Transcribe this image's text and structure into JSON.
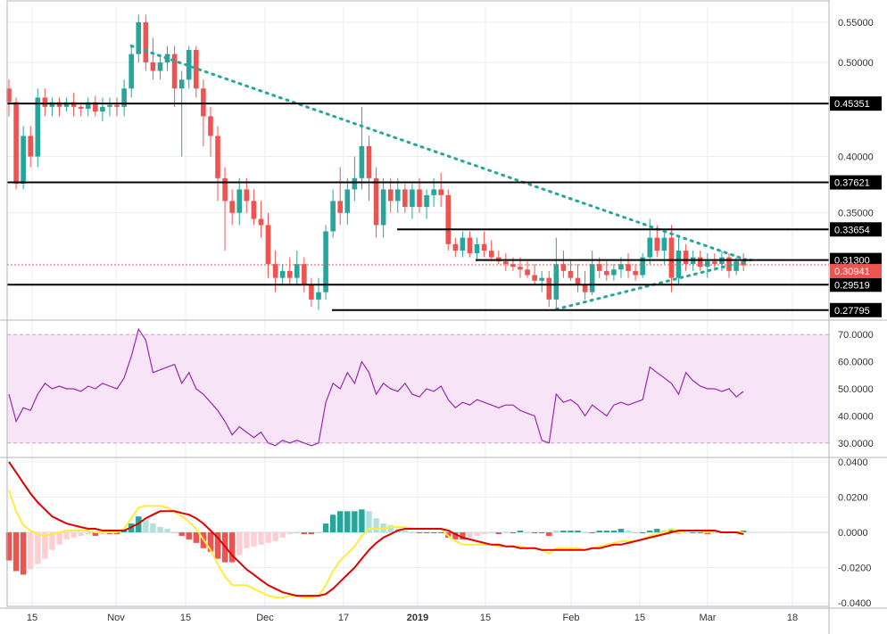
{
  "chart_data": {
    "type": "candlestick",
    "x_labels": [
      "15",
      "Nov",
      "15",
      "Dec",
      "17",
      "2019",
      "15",
      "Feb",
      "15",
      "Mar",
      "18"
    ],
    "price_axis": {
      "ticks": [
        "0.55000",
        "0.50000",
        "0.40000",
        "0.35000"
      ],
      "ylim": [
        0.272,
        0.57
      ],
      "scale": "log"
    },
    "horizontal_levels": [
      {
        "value": 0.45351,
        "label": "0.45351"
      },
      {
        "value": 0.37621,
        "label": "0.37621"
      },
      {
        "value": 0.33654,
        "label": "0.33654"
      },
      {
        "value": 0.313,
        "label": "0.31300"
      },
      {
        "value": 0.29519,
        "label": "0.29519"
      },
      {
        "value": 0.27795,
        "label": "0.27795"
      }
    ],
    "current_price": {
      "value": 0.30941,
      "label": "0.30941",
      "color": "#ef5350"
    },
    "colors": {
      "up": "#26a69a",
      "down": "#ef5350",
      "trendline": "#26a69a",
      "rsi": "#9c27b0",
      "rsi_band": "#f7e4f7",
      "macd": "#ffeb3b",
      "signal": "#e00000"
    },
    "trendlines": [
      {
        "from": [
          17,
          0.52
        ],
        "to": [
          103,
          0.312
        ],
        "style": "dotted"
      },
      {
        "from": [
          76,
          0.2785
        ],
        "to": [
          103,
          0.313
        ],
        "style": "dotted"
      }
    ],
    "candles": [
      [
        0.47,
        0.48,
        0.44,
        0.455
      ],
      [
        0.455,
        0.46,
        0.37,
        0.375
      ],
      [
        0.375,
        0.43,
        0.37,
        0.42
      ],
      [
        0.42,
        0.43,
        0.39,
        0.4
      ],
      [
        0.4,
        0.47,
        0.39,
        0.46
      ],
      [
        0.46,
        0.47,
        0.44,
        0.45
      ],
      [
        0.45,
        0.46,
        0.44,
        0.455
      ],
      [
        0.455,
        0.46,
        0.44,
        0.45
      ],
      [
        0.45,
        0.46,
        0.445,
        0.455
      ],
      [
        0.455,
        0.465,
        0.44,
        0.45
      ],
      [
        0.45,
        0.455,
        0.44,
        0.448
      ],
      [
        0.448,
        0.46,
        0.44,
        0.455
      ],
      [
        0.455,
        0.462,
        0.44,
        0.445
      ],
      [
        0.445,
        0.46,
        0.435,
        0.45
      ],
      [
        0.45,
        0.46,
        0.44,
        0.452
      ],
      [
        0.452,
        0.46,
        0.44,
        0.45
      ],
      [
        0.45,
        0.48,
        0.44,
        0.47
      ],
      [
        0.47,
        0.52,
        0.46,
        0.51
      ],
      [
        0.51,
        0.56,
        0.5,
        0.55
      ],
      [
        0.55,
        0.56,
        0.49,
        0.5
      ],
      [
        0.5,
        0.53,
        0.48,
        0.49
      ],
      [
        0.49,
        0.51,
        0.48,
        0.5
      ],
      [
        0.5,
        0.52,
        0.49,
        0.51
      ],
      [
        0.51,
        0.52,
        0.45,
        0.47
      ],
      [
        0.47,
        0.49,
        0.4,
        0.48
      ],
      [
        0.48,
        0.52,
        0.47,
        0.515
      ],
      [
        0.515,
        0.52,
        0.46,
        0.47
      ],
      [
        0.47,
        0.48,
        0.41,
        0.44
      ],
      [
        0.44,
        0.45,
        0.4,
        0.42
      ],
      [
        0.42,
        0.43,
        0.36,
        0.38
      ],
      [
        0.38,
        0.39,
        0.32,
        0.36
      ],
      [
        0.36,
        0.37,
        0.34,
        0.35
      ],
      [
        0.35,
        0.38,
        0.34,
        0.37
      ],
      [
        0.37,
        0.38,
        0.35,
        0.36
      ],
      [
        0.36,
        0.37,
        0.34,
        0.345
      ],
      [
        0.345,
        0.36,
        0.33,
        0.34
      ],
      [
        0.34,
        0.35,
        0.3,
        0.31
      ],
      [
        0.31,
        0.32,
        0.29,
        0.3
      ],
      [
        0.3,
        0.31,
        0.295,
        0.305
      ],
      [
        0.305,
        0.315,
        0.295,
        0.3
      ],
      [
        0.3,
        0.32,
        0.295,
        0.31
      ],
      [
        0.31,
        0.315,
        0.29,
        0.295
      ],
      [
        0.295,
        0.3,
        0.28,
        0.285
      ],
      [
        0.285,
        0.3,
        0.278,
        0.29
      ],
      [
        0.29,
        0.34,
        0.285,
        0.335
      ],
      [
        0.335,
        0.37,
        0.33,
        0.36
      ],
      [
        0.36,
        0.39,
        0.34,
        0.35
      ],
      [
        0.35,
        0.38,
        0.34,
        0.37
      ],
      [
        0.37,
        0.4,
        0.36,
        0.38
      ],
      [
        0.38,
        0.45,
        0.37,
        0.41
      ],
      [
        0.41,
        0.42,
        0.36,
        0.38
      ],
      [
        0.38,
        0.39,
        0.33,
        0.34
      ],
      [
        0.34,
        0.38,
        0.33,
        0.37
      ],
      [
        0.37,
        0.38,
        0.35,
        0.36
      ],
      [
        0.36,
        0.38,
        0.35,
        0.37
      ],
      [
        0.37,
        0.375,
        0.35,
        0.355
      ],
      [
        0.355,
        0.375,
        0.345,
        0.37
      ],
      [
        0.37,
        0.38,
        0.35,
        0.355
      ],
      [
        0.355,
        0.37,
        0.345,
        0.365
      ],
      [
        0.365,
        0.38,
        0.355,
        0.37
      ],
      [
        0.37,
        0.385,
        0.355,
        0.365
      ],
      [
        0.365,
        0.37,
        0.32,
        0.325
      ],
      [
        0.325,
        0.33,
        0.315,
        0.32
      ],
      [
        0.32,
        0.335,
        0.315,
        0.33
      ],
      [
        0.33,
        0.335,
        0.315,
        0.318
      ],
      [
        0.318,
        0.33,
        0.312,
        0.325
      ],
      [
        0.325,
        0.335,
        0.315,
        0.32
      ],
      [
        0.32,
        0.328,
        0.312,
        0.315
      ],
      [
        0.315,
        0.32,
        0.31,
        0.312
      ],
      [
        0.312,
        0.318,
        0.305,
        0.31
      ],
      [
        0.31,
        0.315,
        0.305,
        0.308
      ],
      [
        0.308,
        0.315,
        0.3,
        0.306
      ],
      [
        0.306,
        0.312,
        0.3,
        0.302
      ],
      [
        0.302,
        0.31,
        0.295,
        0.298
      ],
      [
        0.298,
        0.305,
        0.29,
        0.3
      ],
      [
        0.3,
        0.305,
        0.28,
        0.285
      ],
      [
        0.285,
        0.33,
        0.278,
        0.31
      ],
      [
        0.31,
        0.32,
        0.3,
        0.305
      ],
      [
        0.305,
        0.312,
        0.298,
        0.3
      ],
      [
        0.3,
        0.31,
        0.29,
        0.295
      ],
      [
        0.295,
        0.305,
        0.285,
        0.29
      ],
      [
        0.29,
        0.32,
        0.288,
        0.31
      ],
      [
        0.31,
        0.315,
        0.3,
        0.305
      ],
      [
        0.305,
        0.312,
        0.298,
        0.302
      ],
      [
        0.302,
        0.31,
        0.298,
        0.306
      ],
      [
        0.306,
        0.315,
        0.3,
        0.31
      ],
      [
        0.31,
        0.318,
        0.3,
        0.305
      ],
      [
        0.305,
        0.31,
        0.298,
        0.302
      ],
      [
        0.302,
        0.318,
        0.3,
        0.315
      ],
      [
        0.315,
        0.345,
        0.31,
        0.33
      ],
      [
        0.33,
        0.34,
        0.315,
        0.32
      ],
      [
        0.32,
        0.335,
        0.31,
        0.33
      ],
      [
        0.33,
        0.34,
        0.29,
        0.3
      ],
      [
        0.3,
        0.33,
        0.295,
        0.32
      ],
      [
        0.32,
        0.325,
        0.305,
        0.31
      ],
      [
        0.31,
        0.32,
        0.305,
        0.315
      ],
      [
        0.315,
        0.32,
        0.305,
        0.308
      ],
      [
        0.308,
        0.318,
        0.3,
        0.312
      ],
      [
        0.312,
        0.318,
        0.305,
        0.31
      ],
      [
        0.31,
        0.32,
        0.305,
        0.315
      ],
      [
        0.315,
        0.318,
        0.3,
        0.305
      ],
      [
        0.305,
        0.315,
        0.302,
        0.312
      ],
      [
        0.312,
        0.318,
        0.305,
        0.309
      ]
    ],
    "rsi": {
      "band": [
        30,
        70
      ],
      "ticks": [
        "70.0000",
        "60.0000",
        "50.0000",
        "40.0000",
        "30.0000"
      ],
      "ylim": [
        25,
        75
      ],
      "values": [
        48,
        38,
        43,
        42,
        48,
        52,
        50,
        51,
        50,
        50,
        49,
        51,
        50,
        52,
        51,
        50,
        54,
        62,
        72,
        68,
        56,
        57,
        58,
        59,
        52,
        56,
        50,
        48,
        45,
        42,
        38,
        33,
        36,
        34,
        32,
        34,
        30,
        29,
        31,
        30,
        31,
        30,
        29,
        30,
        45,
        52,
        50,
        56,
        52,
        60,
        56,
        48,
        52,
        50,
        49,
        52,
        48,
        47,
        50,
        49,
        51,
        46,
        43,
        45,
        44,
        46,
        45,
        44,
        43,
        44,
        44,
        42,
        41,
        40,
        31,
        30,
        48,
        45,
        46,
        44,
        40,
        44,
        42,
        40,
        44,
        45,
        44,
        45,
        46,
        58,
        56,
        54,
        52,
        48,
        56,
        53,
        51,
        50,
        50,
        49,
        50,
        47,
        49
      ]
    },
    "macd": {
      "ticks": [
        "0.0400",
        "0.0200",
        "0.0000",
        "-0.0200",
        "-0.0400"
      ],
      "ylim": [
        -0.042,
        0.042
      ],
      "macd_line": [
        0.024,
        0.012,
        0.004,
        0.001,
        -0.001,
        -0.002,
        -0.001,
        0,
        0.001,
        0.001,
        0.001,
        0.001,
        0,
        0,
        0,
        0,
        0.002,
        0.008,
        0.014,
        0.015,
        0.015,
        0.015,
        0.014,
        0.012,
        0.009,
        0.006,
        0.002,
        -0.004,
        -0.01,
        -0.018,
        -0.025,
        -0.03,
        -0.03,
        -0.03,
        -0.032,
        -0.034,
        -0.036,
        -0.037,
        -0.037,
        -0.036,
        -0.036,
        -0.037,
        -0.037,
        -0.036,
        -0.03,
        -0.022,
        -0.016,
        -0.012,
        -0.008,
        -0.002,
        0.002,
        0.002,
        0.002,
        0.003,
        0.003,
        0.003,
        0.002,
        0.002,
        0.002,
        0.002,
        0.002,
        -0.002,
        -0.005,
        -0.007,
        -0.007,
        -0.007,
        -0.007,
        -0.007,
        -0.008,
        -0.008,
        -0.008,
        -0.008,
        -0.009,
        -0.009,
        -0.01,
        -0.012,
        -0.009,
        -0.009,
        -0.009,
        -0.009,
        -0.01,
        -0.009,
        -0.008,
        -0.007,
        -0.006,
        -0.005,
        -0.005,
        -0.005,
        -0.004,
        -0.002,
        -0.001,
        0,
        0.002,
        0,
        0.001,
        0.001,
        0.001,
        0,
        0.001,
        0,
        0,
        0,
        0
      ],
      "signal_line": [
        0.04,
        0.034,
        0.028,
        0.022,
        0.017,
        0.013,
        0.009,
        0.007,
        0.005,
        0.004,
        0.003,
        0.002,
        0.002,
        0.001,
        0.001,
        0.001,
        0.001,
        0.003,
        0.005,
        0.008,
        0.01,
        0.012,
        0.012,
        0.012,
        0.011,
        0.01,
        0.008,
        0.005,
        0.001,
        -0.003,
        -0.008,
        -0.013,
        -0.017,
        -0.021,
        -0.024,
        -0.027,
        -0.03,
        -0.032,
        -0.034,
        -0.035,
        -0.036,
        -0.036,
        -0.036,
        -0.036,
        -0.035,
        -0.032,
        -0.028,
        -0.024,
        -0.02,
        -0.015,
        -0.01,
        -0.006,
        -0.003,
        -0.001,
        0.001,
        0.002,
        0.002,
        0.002,
        0.002,
        0.002,
        0.002,
        0.001,
        -0.001,
        -0.003,
        -0.004,
        -0.005,
        -0.006,
        -0.007,
        -0.007,
        -0.008,
        -0.008,
        -0.009,
        -0.009,
        -0.009,
        -0.01,
        -0.01,
        -0.01,
        -0.01,
        -0.01,
        -0.01,
        -0.01,
        -0.009,
        -0.009,
        -0.008,
        -0.007,
        -0.007,
        -0.006,
        -0.005,
        -0.004,
        -0.003,
        -0.002,
        -0.001,
        0,
        0.001,
        0.001,
        0.001,
        0.001,
        0.001,
        0.001,
        0,
        0,
        0,
        -0.001
      ],
      "histogram": [
        -0.016,
        -0.022,
        -0.024,
        -0.021,
        -0.018,
        -0.015,
        -0.01,
        -0.007,
        -0.004,
        -0.003,
        -0.002,
        -0.001,
        -0.002,
        -0.001,
        -0.001,
        -0.001,
        0.001,
        0.005,
        0.009,
        0.007,
        0.005,
        0.003,
        0.002,
        0,
        -0.002,
        -0.004,
        -0.006,
        -0.009,
        -0.011,
        -0.015,
        -0.017,
        -0.017,
        -0.013,
        -0.009,
        -0.008,
        -0.007,
        -0.006,
        -0.005,
        -0.003,
        -0.001,
        0,
        -0.001,
        -0.001,
        0,
        0.005,
        0.01,
        0.012,
        0.012,
        0.012,
        0.013,
        0.012,
        0.008,
        0.005,
        0.004,
        0.002,
        0.001,
        0,
        0,
        0,
        0,
        0,
        -0.003,
        -0.004,
        -0.004,
        -0.003,
        -0.002,
        -0.001,
        0,
        -0.001,
        0,
        0,
        0.001,
        0,
        0,
        0,
        -0.002,
        0.001,
        0.001,
        0.001,
        0.001,
        0,
        0,
        0.001,
        0.001,
        0.001,
        0.002,
        0.001,
        0,
        0,
        0.001,
        0.002,
        0.001,
        0.002,
        -0.001,
        0,
        0,
        0,
        -0.001,
        0,
        0,
        0,
        0,
        0.001
      ]
    }
  }
}
